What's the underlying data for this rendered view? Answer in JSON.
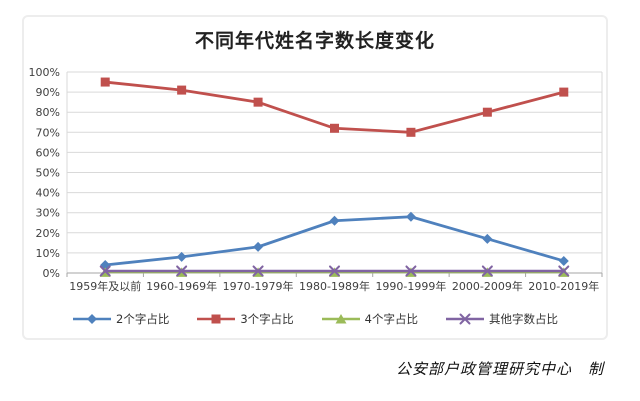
{
  "chart": {
    "title": "不同年代姓名字数长度变化"
  },
  "footer": {
    "credit": "公安部户政管理研究中心　制"
  },
  "chart_data": {
    "type": "line",
    "title": "不同年代姓名字数长度变化",
    "xlabel": "",
    "ylabel": "",
    "ylim": [
      0,
      100
    ],
    "y_tick_step": 10,
    "grid": true,
    "legend_position": "bottom",
    "y_ticks": [
      "0%",
      "10%",
      "20%",
      "30%",
      "40%",
      "50%",
      "60%",
      "70%",
      "80%",
      "90%",
      "100%"
    ],
    "categories": [
      "1959年及以前",
      "1960-1969年",
      "1970-1979年",
      "1980-1989年",
      "1990-1999年",
      "2000-2009年",
      "2010-2019年"
    ],
    "series": [
      {
        "id": "two-char",
        "name": "2个字占比",
        "color": "#4F81BD",
        "marker": "diamond",
        "values": [
          4,
          8,
          13,
          26,
          28,
          17,
          6
        ]
      },
      {
        "id": "three-char",
        "name": "3个字占比",
        "color": "#C0504D",
        "marker": "square",
        "values": [
          95,
          91,
          85,
          72,
          70,
          80,
          90
        ]
      },
      {
        "id": "four-char",
        "name": "4个字占比",
        "color": "#9BBB59",
        "marker": "triangle",
        "values": [
          0.3,
          0.3,
          0.3,
          0.3,
          0.3,
          0.3,
          0.3
        ]
      },
      {
        "id": "other",
        "name": "其他字数占比",
        "color": "#8064A2",
        "marker": "x",
        "values": [
          1,
          1,
          1,
          1,
          1,
          1,
          1
        ]
      }
    ],
    "colors": {
      "gridline": "#d9d9d9",
      "axis": "#a6a6a6",
      "axis_text": "#3f3f3f"
    }
  }
}
